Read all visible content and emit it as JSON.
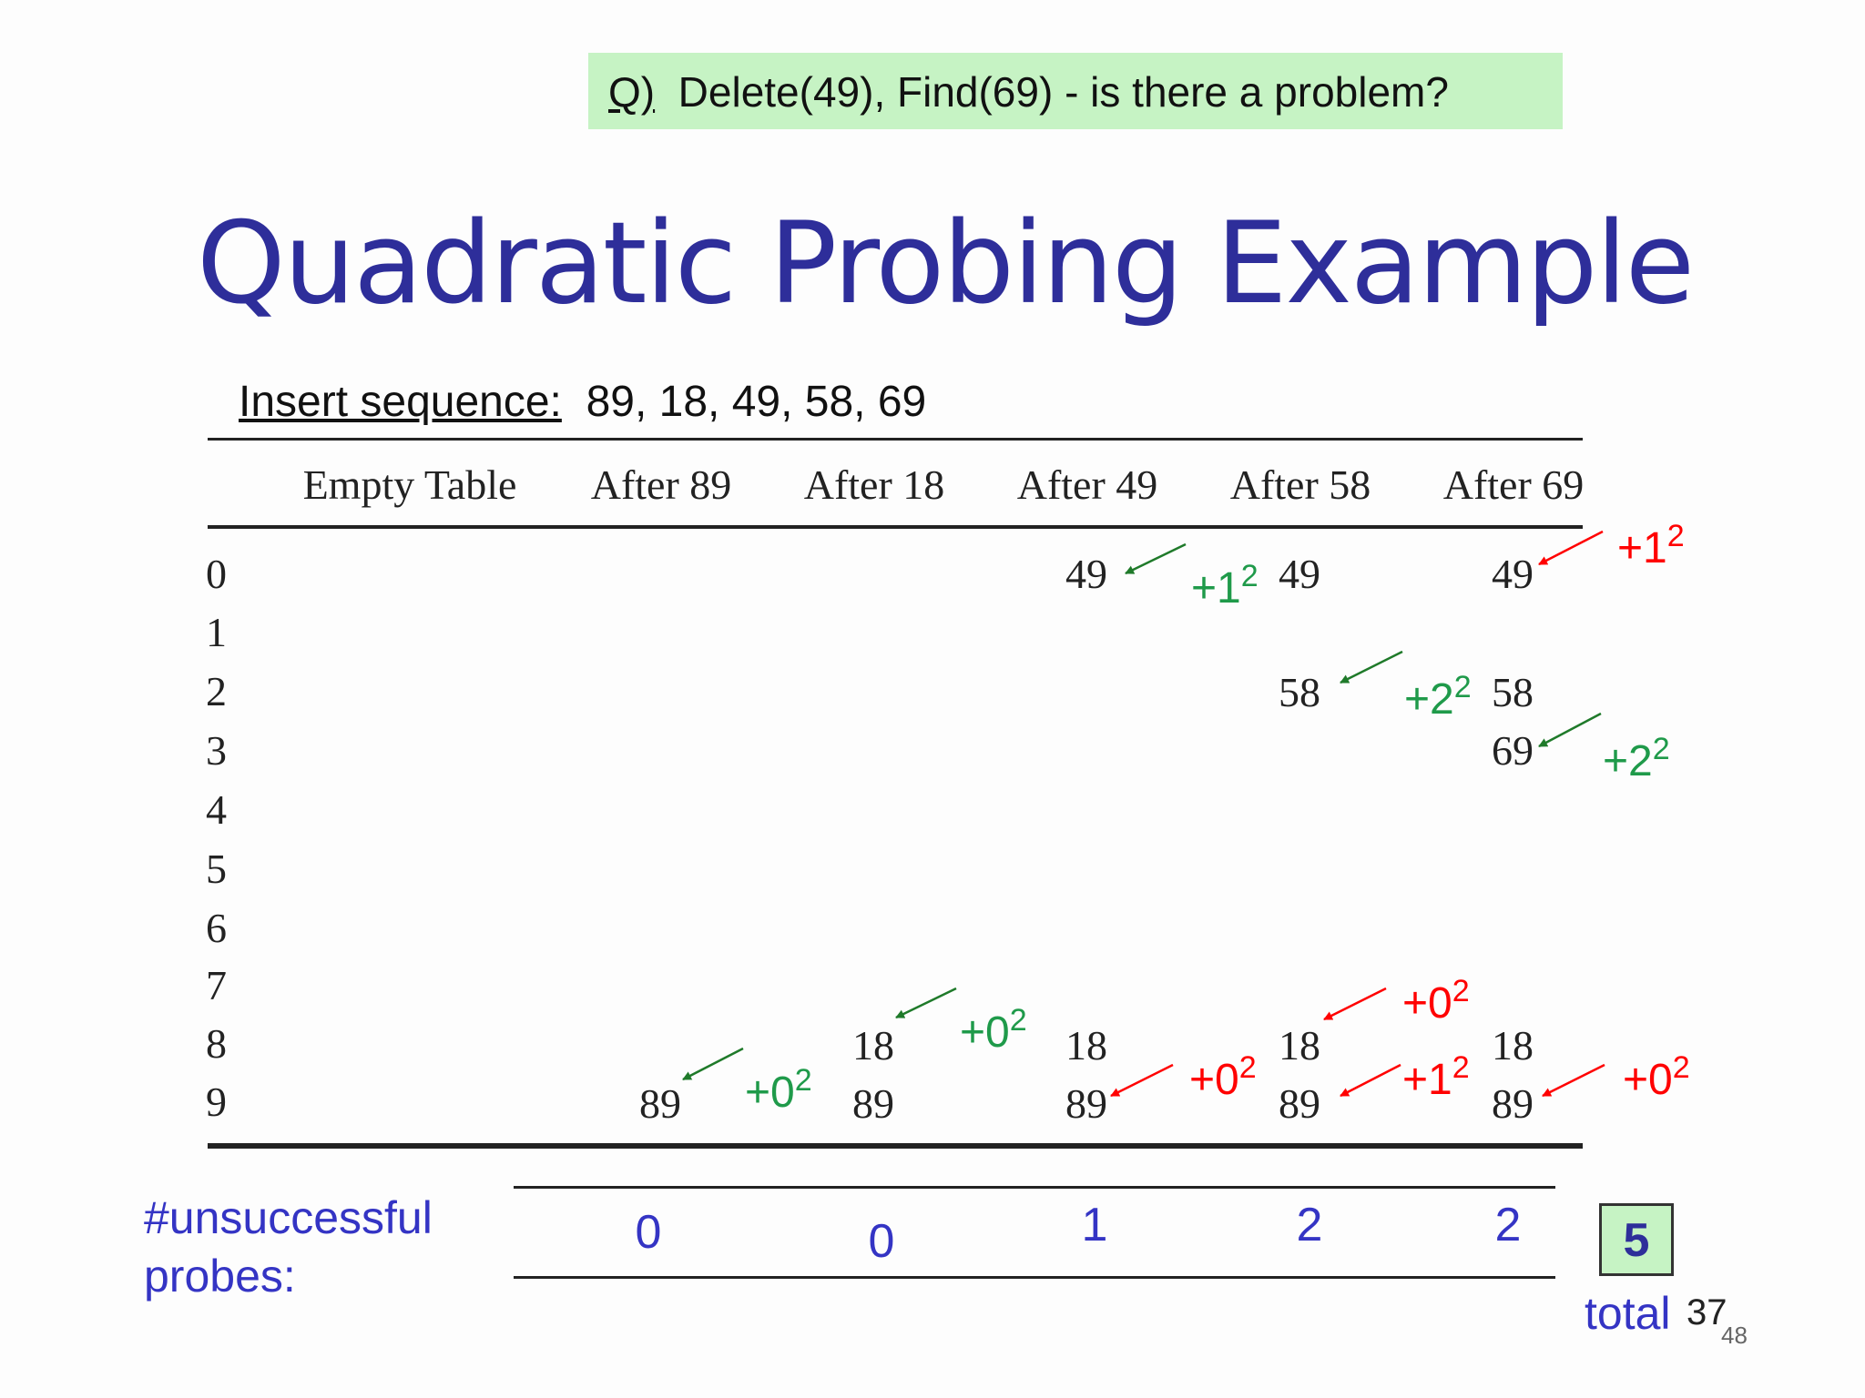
{
  "question": {
    "prefix": "Q)",
    "text": "Delete(49), Find(69)  - is there a problem?"
  },
  "title": "Quadratic Probing Example",
  "insert": {
    "label": "Insert sequence:",
    "values": "89, 18, 49, 58, 69"
  },
  "columns": [
    "Empty Table",
    "After 89",
    "After 18",
    "After 49",
    "After 58",
    "After 69"
  ],
  "rows": [
    "0",
    "1",
    "2",
    "3",
    "4",
    "5",
    "6",
    "7",
    "8",
    "9"
  ],
  "cells": {
    "after89": {
      "r9": "89"
    },
    "after18": {
      "r8": "18",
      "r9": "89"
    },
    "after49": {
      "r0": "49",
      "r8": "18",
      "r9": "89"
    },
    "after58": {
      "r0": "49",
      "r2": "58",
      "r8": "18",
      "r9": "89"
    },
    "after69": {
      "r0": "49",
      "r2": "58",
      "r3": "69",
      "r8": "18",
      "r9": "89"
    }
  },
  "probes": {
    "p_after89_r9": {
      "base": "+0",
      "exp": "2",
      "color": "#1f9a4a"
    },
    "p_after18_r8": {
      "base": "+0",
      "exp": "2",
      "color": "#1f9a4a"
    },
    "p_after49_r0": {
      "base": "+1",
      "exp": "2",
      "color": "#1f9a4a"
    },
    "p_after49_r9": {
      "base": "+0",
      "exp": "2",
      "color": "#ff0000"
    },
    "p_after58_r2": {
      "base": "+2",
      "exp": "2",
      "color": "#1f9a4a"
    },
    "p_after58_r7": {
      "base": "+0",
      "exp": "2",
      "color": "#ff0000"
    },
    "p_after58_r9": {
      "base": "+1",
      "exp": "2",
      "color": "#ff0000"
    },
    "p_after69_r0": {
      "base": "+1",
      "exp": "2",
      "color": "#ff0000"
    },
    "p_after69_r3": {
      "base": "+2",
      "exp": "2",
      "color": "#1f9a4a"
    },
    "p_after69_r9": {
      "base": "+0",
      "exp": "2",
      "color": "#ff0000"
    }
  },
  "unsuccessful": {
    "label": "#unsuccessful probes:",
    "counts": [
      "0",
      "0",
      "1",
      "2",
      "2"
    ],
    "total_value": "5",
    "total_word": "total",
    "total_num": "37"
  },
  "page_number": "48"
}
